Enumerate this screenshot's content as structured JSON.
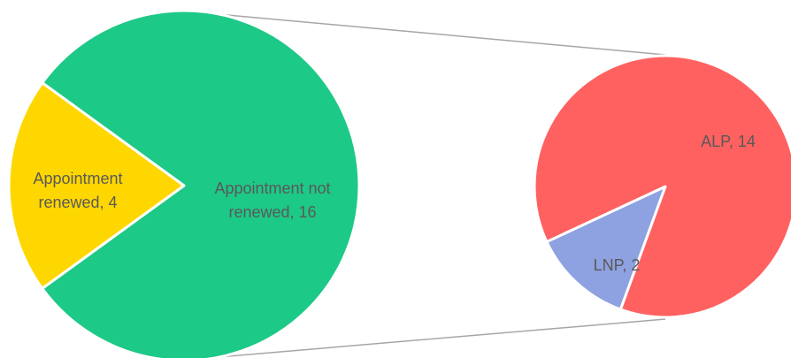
{
  "chart_data": {
    "type": "pie",
    "variant": "pie-of-pie",
    "title": "",
    "main_pie": {
      "slices": [
        {
          "label": "Appointment renewed",
          "value": 4,
          "display": "Appointment renewed, 4",
          "color": "#FFD700"
        },
        {
          "label": "Appointment not renewed",
          "value": 16,
          "display": "Appointment not renewed, 16",
          "color": "#1DC987"
        }
      ]
    },
    "secondary_pie": {
      "breakdown_of": "Appointment not renewed",
      "slices": [
        {
          "label": "ALP",
          "value": 14,
          "display": "ALP, 14",
          "color": "#FF6161"
        },
        {
          "label": "LNP",
          "value": 2,
          "display": "LNP, 2",
          "color": "#8EA1E0"
        }
      ]
    },
    "legend": "none"
  }
}
